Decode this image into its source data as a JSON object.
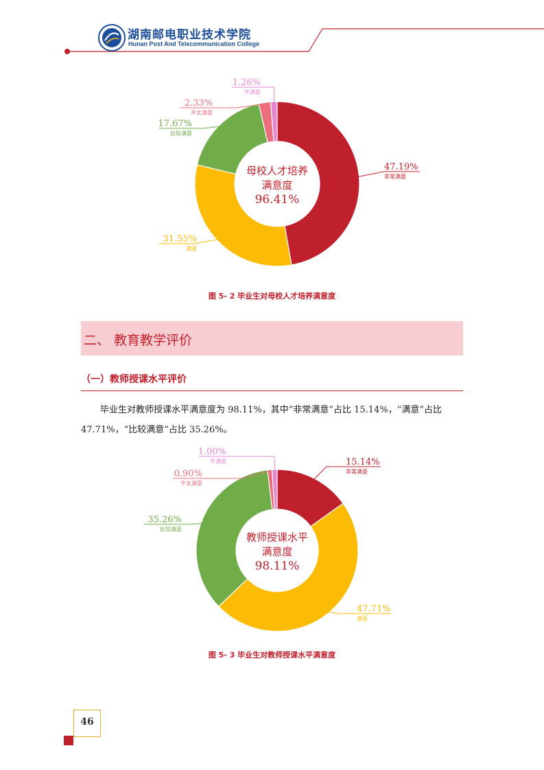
{
  "header": {
    "college_cn": "湖南邮电职业技术学院",
    "college_en": "Hunan Post And Telecommunication College"
  },
  "chart_data": [
    {
      "type": "pie",
      "title": "图 5- 2 毕业生对母校人才培养满意度",
      "center_label": [
        "母校人才培养",
        "满意度",
        "96.41%"
      ],
      "slices": [
        {
          "label": "非常满意",
          "value": 47.19,
          "display": "47.19%",
          "color": "#c0202b"
        },
        {
          "label": "满意",
          "value": 31.55,
          "display": "31.55%",
          "color": "#fcbc05"
        },
        {
          "label": "比较满意",
          "value": 17.67,
          "display": "17.67%",
          "color": "#70ac47"
        },
        {
          "label": "不太满意",
          "value": 2.33,
          "display": "2.33%",
          "color": "#ec6e7c"
        },
        {
          "label": "不满意",
          "value": 1.26,
          "display": "1.26%",
          "color": "#e585d0"
        }
      ]
    },
    {
      "type": "pie",
      "title": "图 5- 3 毕业生对教师授课水平满意度",
      "center_label": [
        "教师授课水平",
        "满意度",
        "98.11%"
      ],
      "slices": [
        {
          "label": "非常满意",
          "value": 15.14,
          "display": "15.14%",
          "color": "#c0202b"
        },
        {
          "label": "满意",
          "value": 47.71,
          "display": "47.71%",
          "color": "#fcbc05"
        },
        {
          "label": "比较满意",
          "value": 35.26,
          "display": "35.26%",
          "color": "#70ac47"
        },
        {
          "label": "不太满意",
          "value": 0.9,
          "display": "0.90%",
          "color": "#ec6e7c"
        },
        {
          "label": "不满意",
          "value": 1.0,
          "display": "1.00%",
          "color": "#e585d0"
        }
      ]
    }
  ],
  "section": {
    "title": "二、 教育教学评价",
    "subtitle": "（一）教师授课水平评价",
    "paragraph": "毕业生对教师授课水平满意度为 98.11%，其中“非常满意”占比 15.14%，“满意”占比 47.71%，“比较满意”占比 35.26%。"
  },
  "page_number": "46"
}
